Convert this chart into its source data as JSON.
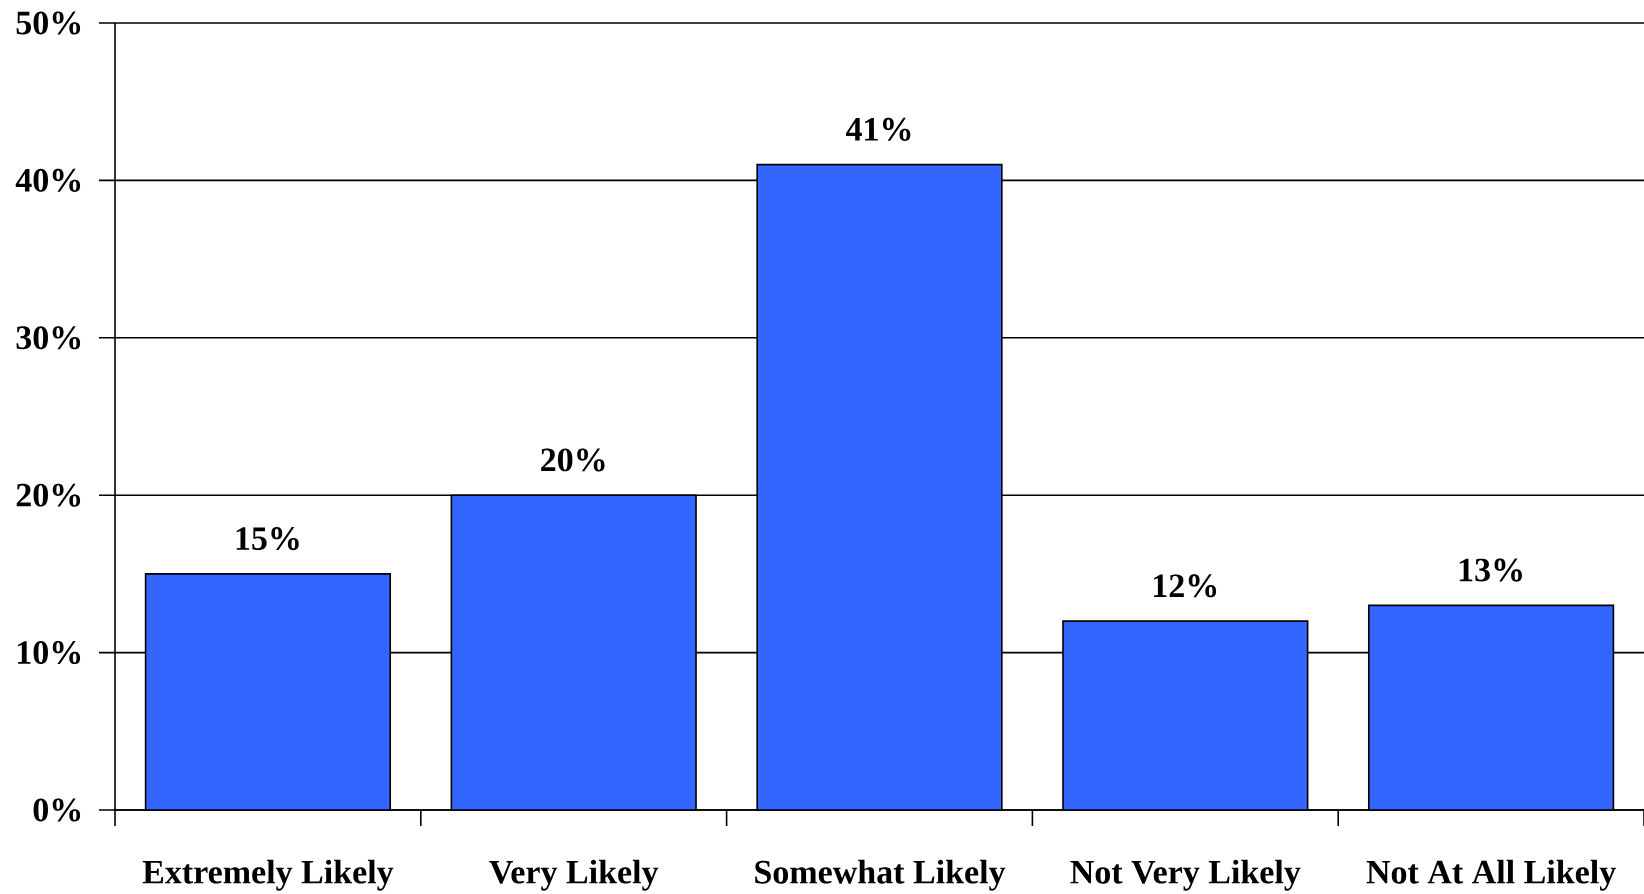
{
  "chart_data": {
    "type": "bar",
    "categories": [
      "Extremely Likely",
      "Very Likely",
      "Somewhat Likely",
      "Not Very Likely",
      "Not At All Likely"
    ],
    "values": [
      15,
      20,
      41,
      12,
      13
    ],
    "value_labels": [
      "15%",
      "20%",
      "41%",
      "12%",
      "13%"
    ],
    "color": "#3366ff",
    "ylim": [
      0,
      50
    ],
    "yticks": [
      {
        "value": 0,
        "label": "0%"
      },
      {
        "value": 10,
        "label": "10%"
      },
      {
        "value": 20,
        "label": "20%"
      },
      {
        "value": 30,
        "label": "30%"
      },
      {
        "value": 40,
        "label": "40%"
      },
      {
        "value": 50,
        "label": "50%"
      }
    ],
    "grid": "y"
  }
}
